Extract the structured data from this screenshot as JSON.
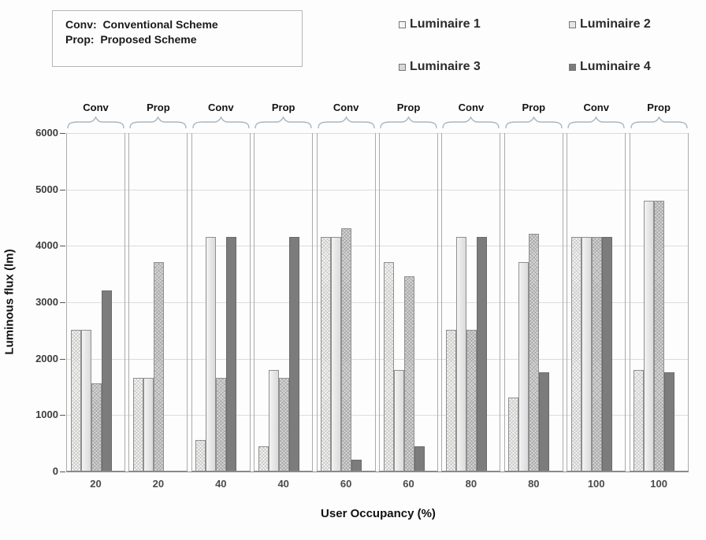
{
  "note": {
    "line1": "Conv:  Conventional Scheme",
    "line2": "Prop:  Proposed Scheme"
  },
  "legend": {
    "items": [
      {
        "label": "Luminaire 1"
      },
      {
        "label": "Luminaire 2"
      },
      {
        "label": "Luminaire 3"
      },
      {
        "label": "Luminaire 4"
      }
    ]
  },
  "colors": {
    "luminaire1": "#f5f5f4",
    "luminaire2": "#e6e6e6",
    "luminaire3": "#d7d7d7",
    "luminaire4": "#7c7c7c",
    "gridline": "#dcdcdc",
    "brace": "#a9b7c1",
    "panel_border": "#ababab"
  },
  "chart_data": {
    "type": "bar",
    "title": "",
    "xlabel": "User Occupancy (%)",
    "ylabel": "Luminous flux (lm)",
    "ylim": [
      0,
      6000
    ],
    "yticks": [
      0,
      1000,
      2000,
      3000,
      4000,
      5000,
      6000
    ],
    "grid": true,
    "legend_position": "top-right",
    "series_names": [
      "Luminaire 1",
      "Luminaire 2",
      "Luminaire 3",
      "Luminaire 4"
    ],
    "group_scheme_note": "each occupancy level has a Conventional (Conv) and a Proposed (Prop) group",
    "groups": [
      {
        "scheme": "Conv",
        "occupancy": "20",
        "values": [
          2500,
          2500,
          1550,
          3200
        ]
      },
      {
        "scheme": "Prop",
        "occupancy": "20",
        "values": [
          1650,
          1650,
          3700,
          0
        ]
      },
      {
        "scheme": "Conv",
        "occupancy": "40",
        "values": [
          550,
          4150,
          1650,
          4150
        ]
      },
      {
        "scheme": "Prop",
        "occupancy": "40",
        "values": [
          430,
          1780,
          1650,
          4150
        ]
      },
      {
        "scheme": "Conv",
        "occupancy": "60",
        "values": [
          4150,
          4150,
          4300,
          200
        ]
      },
      {
        "scheme": "Prop",
        "occupancy": "60",
        "values": [
          3700,
          1780,
          3450,
          430
        ]
      },
      {
        "scheme": "Conv",
        "occupancy": "80",
        "values": [
          2500,
          4150,
          2500,
          4150
        ]
      },
      {
        "scheme": "Prop",
        "occupancy": "80",
        "values": [
          1300,
          3700,
          4200,
          1750
        ]
      },
      {
        "scheme": "Conv",
        "occupancy": "100",
        "values": [
          4150,
          4150,
          4150,
          4150
        ]
      },
      {
        "scheme": "Prop",
        "occupancy": "100",
        "values": [
          1780,
          4780,
          4780,
          1750
        ]
      }
    ]
  }
}
